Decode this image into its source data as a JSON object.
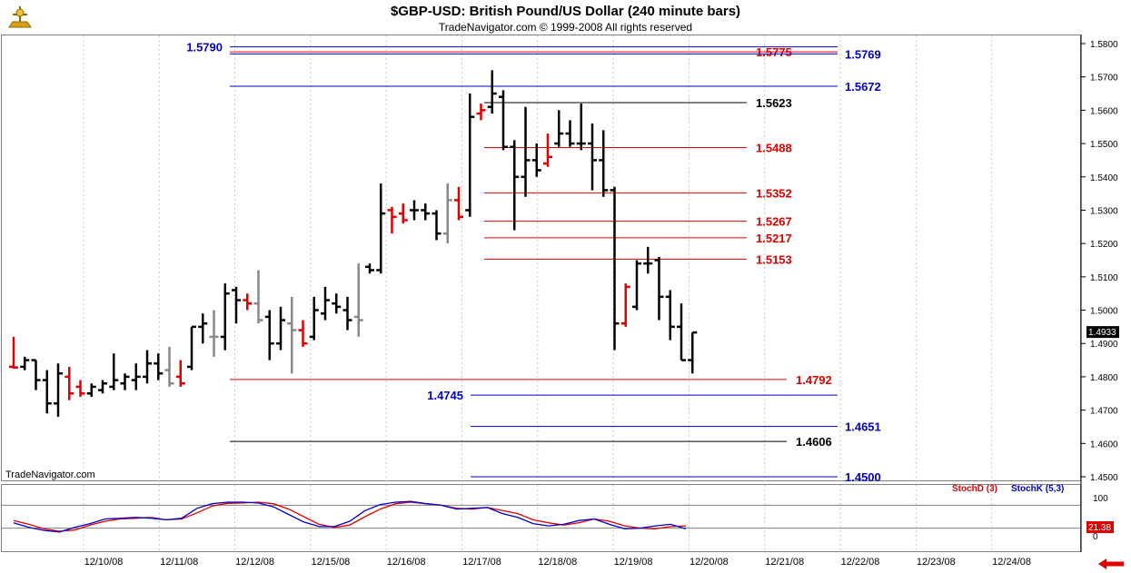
{
  "header": {
    "title": "$GBP-USD:  British Pound/US Dollar  (240 minute bars)",
    "subtitle": "TradeNavigator.com © 1999-2008 All rights reserved",
    "watermark": "TradeNavigator.com"
  },
  "colors": {
    "bull_bar": "#000000",
    "bear_bar": "#e00000",
    "neutral_bar": "#888888",
    "level_blue": "#0000cc",
    "level_red": "#e00000",
    "level_black": "#000000",
    "stoch_d": "#e00000",
    "stoch_k": "#0000cc",
    "last_price_bg": "#000000",
    "last_stoch_bg": "#e00000"
  },
  "chart_data": [
    {
      "type": "ohlc",
      "title": "$GBP-USD:  British Pound/US Dollar  (240 minute bars)",
      "ylim": [
        1.445,
        1.586
      ],
      "y_ticks": [
        "1.4500",
        "1.4600",
        "1.4700",
        "1.4800",
        "1.4900",
        "1.5000",
        "1.5100",
        "1.5200",
        "1.5300",
        "1.5400",
        "1.5500",
        "1.5600",
        "1.5700",
        "1.5800"
      ],
      "x_ticks": [
        "12/10/08",
        "12/11/08",
        "12/12/08",
        "12/15/08",
        "12/16/08",
        "12/17/08",
        "12/18/08",
        "12/19/08",
        "12/20/08",
        "12/21/08",
        "12/22/08",
        "12/23/08",
        "12/24/08"
      ],
      "last_price": "1.4933",
      "bars": [
        {
          "o": 1.483,
          "h": 1.492,
          "l": 1.4825,
          "c": 1.4828,
          "k": "r"
        },
        {
          "o": 1.483,
          "h": 1.486,
          "l": 1.482,
          "c": 1.485,
          "k": "b"
        },
        {
          "o": 1.485,
          "h": 1.485,
          "l": 1.476,
          "c": 1.479,
          "k": "b"
        },
        {
          "o": 1.479,
          "h": 1.482,
          "l": 1.469,
          "c": 1.472,
          "k": "b"
        },
        {
          "o": 1.472,
          "h": 1.484,
          "l": 1.468,
          "c": 1.481,
          "k": "b"
        },
        {
          "o": 1.48,
          "h": 1.483,
          "l": 1.473,
          "c": 1.475,
          "k": "r"
        },
        {
          "o": 1.477,
          "h": 1.479,
          "l": 1.474,
          "c": 1.475,
          "k": "r"
        },
        {
          "o": 1.475,
          "h": 1.478,
          "l": 1.474,
          "c": 1.477,
          "k": "b"
        },
        {
          "o": 1.476,
          "h": 1.479,
          "l": 1.475,
          "c": 1.478,
          "k": "b"
        },
        {
          "o": 1.477,
          "h": 1.487,
          "l": 1.476,
          "c": 1.479,
          "k": "b"
        },
        {
          "o": 1.478,
          "h": 1.481,
          "l": 1.476,
          "c": 1.48,
          "k": "b"
        },
        {
          "o": 1.479,
          "h": 1.484,
          "l": 1.476,
          "c": 1.48,
          "k": "b"
        },
        {
          "o": 1.48,
          "h": 1.488,
          "l": 1.478,
          "c": 1.484,
          "k": "b"
        },
        {
          "o": 1.484,
          "h": 1.487,
          "l": 1.479,
          "c": 1.481,
          "k": "b"
        },
        {
          "o": 1.482,
          "h": 1.489,
          "l": 1.477,
          "c": 1.478,
          "k": "g"
        },
        {
          "o": 1.48,
          "h": 1.485,
          "l": 1.477,
          "c": 1.478,
          "k": "r"
        },
        {
          "o": 1.483,
          "h": 1.495,
          "l": 1.482,
          "c": 1.495,
          "k": "b"
        },
        {
          "o": 1.495,
          "h": 1.499,
          "l": 1.49,
          "c": 1.496,
          "k": "b"
        },
        {
          "o": 1.492,
          "h": 1.5,
          "l": 1.486,
          "c": 1.492,
          "k": "g"
        },
        {
          "o": 1.492,
          "h": 1.508,
          "l": 1.488,
          "c": 1.505,
          "k": "b"
        },
        {
          "o": 1.506,
          "h": 1.507,
          "l": 1.496,
          "c": 1.503,
          "k": "b"
        },
        {
          "o": 1.503,
          "h": 1.505,
          "l": 1.5,
          "c": 1.502,
          "k": "r"
        },
        {
          "o": 1.502,
          "h": 1.512,
          "l": 1.496,
          "c": 1.497,
          "k": "g"
        },
        {
          "o": 1.498,
          "h": 1.5,
          "l": 1.485,
          "c": 1.49,
          "k": "b"
        },
        {
          "o": 1.49,
          "h": 1.501,
          "l": 1.488,
          "c": 1.497,
          "k": "b"
        },
        {
          "o": 1.496,
          "h": 1.504,
          "l": 1.481,
          "c": 1.494,
          "k": "g"
        },
        {
          "o": 1.494,
          "h": 1.497,
          "l": 1.489,
          "c": 1.49,
          "k": "r"
        },
        {
          "o": 1.492,
          "h": 1.504,
          "l": 1.491,
          "c": 1.5,
          "k": "b"
        },
        {
          "o": 1.499,
          "h": 1.507,
          "l": 1.497,
          "c": 1.503,
          "k": "b"
        },
        {
          "o": 1.502,
          "h": 1.505,
          "l": 1.499,
          "c": 1.501,
          "k": "b"
        },
        {
          "o": 1.5,
          "h": 1.504,
          "l": 1.494,
          "c": 1.497,
          "k": "b"
        },
        {
          "o": 1.498,
          "h": 1.514,
          "l": 1.492,
          "c": 1.497,
          "k": "g"
        },
        {
          "o": 1.513,
          "h": 1.514,
          "l": 1.511,
          "c": 1.512,
          "k": "b"
        },
        {
          "o": 1.512,
          "h": 1.538,
          "l": 1.511,
          "c": 1.529,
          "k": "b"
        },
        {
          "o": 1.53,
          "h": 1.531,
          "l": 1.523,
          "c": 1.528,
          "k": "r"
        },
        {
          "o": 1.529,
          "h": 1.532,
          "l": 1.526,
          "c": 1.527,
          "k": "r"
        },
        {
          "o": 1.53,
          "h": 1.533,
          "l": 1.527,
          "c": 1.53,
          "k": "b"
        },
        {
          "o": 1.53,
          "h": 1.532,
          "l": 1.527,
          "c": 1.529,
          "k": "b"
        },
        {
          "o": 1.529,
          "h": 1.53,
          "l": 1.521,
          "c": 1.523,
          "k": "b"
        },
        {
          "o": 1.523,
          "h": 1.538,
          "l": 1.52,
          "c": 1.533,
          "k": "g"
        },
        {
          "o": 1.533,
          "h": 1.537,
          "l": 1.527,
          "c": 1.528,
          "k": "r"
        },
        {
          "o": 1.53,
          "h": 1.565,
          "l": 1.528,
          "c": 1.558,
          "k": "b"
        },
        {
          "o": 1.559,
          "h": 1.562,
          "l": 1.557,
          "c": 1.56,
          "k": "r"
        },
        {
          "o": 1.561,
          "h": 1.572,
          "l": 1.559,
          "c": 1.565,
          "k": "b"
        },
        {
          "o": 1.564,
          "h": 1.566,
          "l": 1.548,
          "c": 1.549,
          "k": "b"
        },
        {
          "o": 1.549,
          "h": 1.551,
          "l": 1.524,
          "c": 1.54,
          "k": "b"
        },
        {
          "o": 1.54,
          "h": 1.561,
          "l": 1.534,
          "c": 1.545,
          "k": "b"
        },
        {
          "o": 1.545,
          "h": 1.55,
          "l": 1.54,
          "c": 1.542,
          "k": "b"
        },
        {
          "o": 1.544,
          "h": 1.553,
          "l": 1.543,
          "c": 1.546,
          "k": "r"
        },
        {
          "o": 1.55,
          "h": 1.56,
          "l": 1.549,
          "c": 1.553,
          "k": "b"
        },
        {
          "o": 1.553,
          "h": 1.557,
          "l": 1.549,
          "c": 1.55,
          "k": "b"
        },
        {
          "o": 1.55,
          "h": 1.562,
          "l": 1.548,
          "c": 1.55,
          "k": "b"
        },
        {
          "o": 1.55,
          "h": 1.556,
          "l": 1.536,
          "c": 1.545,
          "k": "b"
        },
        {
          "o": 1.545,
          "h": 1.554,
          "l": 1.534,
          "c": 1.536,
          "k": "b"
        },
        {
          "o": 1.536,
          "h": 1.537,
          "l": 1.488,
          "c": 1.496,
          "k": "b"
        },
        {
          "o": 1.496,
          "h": 1.508,
          "l": 1.495,
          "c": 1.507,
          "k": "r"
        },
        {
          "o": 1.501,
          "h": 1.515,
          "l": 1.5,
          "c": 1.514,
          "k": "b"
        },
        {
          "o": 1.514,
          "h": 1.519,
          "l": 1.511,
          "c": 1.514,
          "k": "b"
        },
        {
          "o": 1.515,
          "h": 1.516,
          "l": 1.497,
          "c": 1.504,
          "k": "b"
        },
        {
          "o": 1.504,
          "h": 1.506,
          "l": 1.491,
          "c": 1.495,
          "k": "b"
        },
        {
          "o": 1.495,
          "h": 1.502,
          "l": 1.485,
          "c": 1.485,
          "k": "b"
        },
        {
          "o": 1.485,
          "h": 1.4933,
          "l": 1.481,
          "c": 1.4933,
          "k": "b"
        }
      ],
      "levels": [
        {
          "value": 1.579,
          "label": "1.5790",
          "color": "blue",
          "label_side": "left"
        },
        {
          "value": 1.5775,
          "label": "1.5775",
          "color": "red",
          "label_side": "right"
        },
        {
          "value": 1.5769,
          "label": "1.5769",
          "color": "blue",
          "label_side": "right"
        },
        {
          "value": 1.5672,
          "label": "1.5672",
          "color": "blue",
          "label_side": "right"
        },
        {
          "value": 1.5623,
          "label": "1.5623",
          "color": "black",
          "label_side": "right"
        },
        {
          "value": 1.5488,
          "label": "1.5488",
          "color": "red",
          "label_side": "right"
        },
        {
          "value": 1.5352,
          "label": "1.5352",
          "color": "red",
          "label_side": "right"
        },
        {
          "value": 1.5267,
          "label": "1.5267",
          "color": "red",
          "label_side": "right"
        },
        {
          "value": 1.5217,
          "label": "1.5217",
          "color": "red",
          "label_side": "right"
        },
        {
          "value": 1.5153,
          "label": "1.5153",
          "color": "red",
          "label_side": "right"
        },
        {
          "value": 1.4792,
          "label": "1.4792",
          "color": "red",
          "label_side": "right"
        },
        {
          "value": 1.4745,
          "label": "1.4745",
          "color": "blue",
          "label_side": "left"
        },
        {
          "value": 1.4651,
          "label": "1.4651",
          "color": "blue",
          "label_side": "right"
        },
        {
          "value": 1.4606,
          "label": "1.4606",
          "color": "black",
          "label_side": "right"
        },
        {
          "value": 1.45,
          "label": "1.4500",
          "color": "blue",
          "label_side": "right"
        }
      ]
    },
    {
      "type": "line",
      "ylim": [
        0,
        100
      ],
      "y_ticks": [
        "100",
        "0"
      ],
      "last_value": "21.38",
      "reference_lines": [
        80,
        20
      ],
      "series": [
        {
          "name": "StochD (3)",
          "values": [
            40,
            30,
            18,
            12,
            15,
            28,
            38,
            44,
            46,
            48,
            42,
            44,
            60,
            78,
            85,
            86,
            88,
            84,
            70,
            50,
            30,
            22,
            28,
            50,
            70,
            84,
            88,
            84,
            80,
            72,
            70,
            74,
            66,
            58,
            42,
            34,
            28,
            34,
            44,
            38,
            26,
            20,
            18,
            24,
            26
          ]
        },
        {
          "name": "StochK (5,3)",
          "values": [
            34,
            22,
            14,
            10,
            22,
            32,
            44,
            46,
            48,
            46,
            42,
            46,
            72,
            84,
            88,
            88,
            86,
            76,
            56,
            36,
            24,
            24,
            38,
            66,
            82,
            88,
            90,
            84,
            80,
            70,
            72,
            74,
            58,
            48,
            32,
            26,
            30,
            40,
            44,
            30,
            18,
            20,
            26,
            30,
            18
          ]
        }
      ]
    }
  ]
}
